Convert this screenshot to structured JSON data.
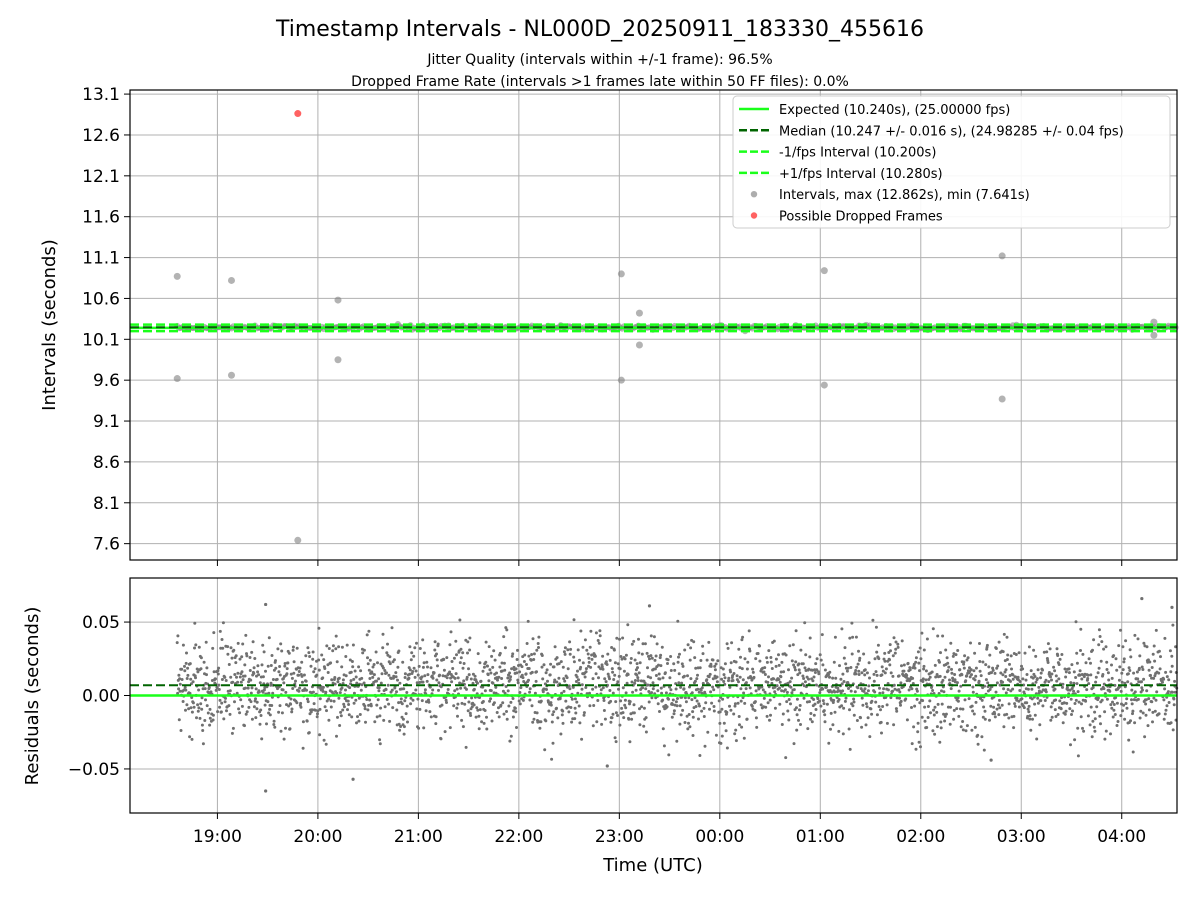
{
  "title": "Timestamp Intervals - NL000D_20250911_183330_455616",
  "subtitle1": "Jitter Quality (intervals within +/-1 frame): 96.5%",
  "subtitle2": "Dropped Frame Rate (intervals >1 frames late within 50 FF files): 0.0%",
  "colors": {
    "expected": "#1aff1a",
    "median": "#006400",
    "fps_interval": "#1aff1a",
    "intervals": "#808080",
    "dropped": "#ff3b3b",
    "grid": "#b0b0b0"
  },
  "chart_data": [
    {
      "type": "scatter",
      "ylabel": "Intervals (seconds)",
      "ylim": [
        7.4,
        13.15
      ],
      "xlim_hours": [
        18.13,
        28.55
      ],
      "yticks": [
        "7.6",
        "8.1",
        "8.6",
        "9.1",
        "9.6",
        "10.1",
        "10.6",
        "11.1",
        "11.6",
        "12.1",
        "12.6",
        "13.1"
      ],
      "grid": true,
      "legend_position": "top-right",
      "legend": [
        {
          "label": "Expected (10.240s), (25.00000 fps)",
          "style": "solid-line",
          "color": "#1aff1a"
        },
        {
          "label": "Median (10.247 +/- 0.016 s), (24.98285 +/- 0.04 fps)",
          "style": "dashed-line",
          "color": "#006400"
        },
        {
          "label": "-1/fps Interval (10.200s)",
          "style": "dashed-line",
          "color": "#1aff1a"
        },
        {
          "label": "+1/fps Interval (10.280s)",
          "style": "dashed-line",
          "color": "#1aff1a"
        },
        {
          "label": "Intervals, max (12.862s), min (7.641s)",
          "style": "marker",
          "color": "#999999"
        },
        {
          "label": "Possible Dropped Frames",
          "style": "marker",
          "color": "#ff3b3b"
        }
      ],
      "reference_lines": {
        "expected": 10.24,
        "median": 10.247,
        "minus_fps": 10.2,
        "plus_fps": 10.28
      },
      "outliers": [
        {
          "x_hour": 18.6,
          "y": 10.87
        },
        {
          "x_hour": 18.6,
          "y": 9.62
        },
        {
          "x_hour": 19.14,
          "y": 10.82
        },
        {
          "x_hour": 19.14,
          "y": 9.66
        },
        {
          "x_hour": 19.8,
          "y": 7.641
        },
        {
          "x_hour": 20.2,
          "y": 10.58
        },
        {
          "x_hour": 20.2,
          "y": 9.85
        },
        {
          "x_hour": 23.02,
          "y": 10.9
        },
        {
          "x_hour": 23.02,
          "y": 9.6
        },
        {
          "x_hour": 23.2,
          "y": 10.42
        },
        {
          "x_hour": 23.2,
          "y": 10.03
        },
        {
          "x_hour": 25.04,
          "y": 10.94
        },
        {
          "x_hour": 25.04,
          "y": 9.54
        },
        {
          "x_hour": 26.81,
          "y": 11.12
        },
        {
          "x_hour": 26.81,
          "y": 9.37
        },
        {
          "x_hour": 28.32,
          "y": 10.31
        },
        {
          "x_hour": 28.32,
          "y": 10.15
        }
      ],
      "dropped_frames": [
        {
          "x_hour": 19.8,
          "y": 12.862
        }
      ],
      "band_note": "dense intervals between 10.21 and 10.28 s from 18:36 to 04:33"
    },
    {
      "type": "scatter",
      "ylabel": "Residuals (seconds)",
      "xlabel": "Time (UTC)",
      "ylim": [
        -0.08,
        0.08
      ],
      "xlim_hours": [
        18.13,
        28.55
      ],
      "yticks": [
        "−0.05",
        "0.00",
        "0.05"
      ],
      "xticks": [
        "19:00",
        "20:00",
        "21:00",
        "22:00",
        "23:00",
        "00:00",
        "01:00",
        "02:00",
        "03:00",
        "04:00"
      ],
      "grid": true,
      "reference_lines": {
        "zero": 0.0,
        "median_offset": 0.007
      },
      "residual_distribution": {
        "start_hour": 18.6,
        "end_hour": 28.55,
        "count": 2900,
        "mean": 0.007,
        "std": 0.016
      },
      "residual_extremes": [
        {
          "x_hour": 19.48,
          "y": 0.062
        },
        {
          "x_hour": 19.48,
          "y": -0.065
        },
        {
          "x_hour": 20.35,
          "y": -0.057
        },
        {
          "x_hour": 23.3,
          "y": 0.061
        },
        {
          "x_hour": 22.88,
          "y": -0.048
        },
        {
          "x_hour": 28.2,
          "y": 0.066
        },
        {
          "x_hour": 28.5,
          "y": 0.06
        },
        {
          "x_hour": 26.7,
          "y": -0.044
        }
      ]
    }
  ]
}
